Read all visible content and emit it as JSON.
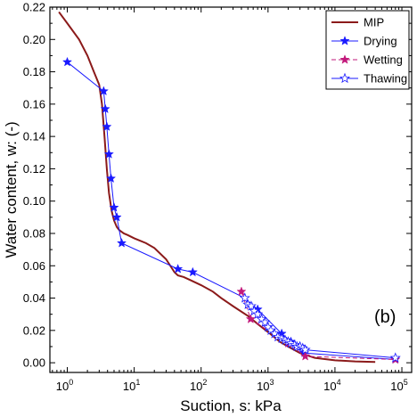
{
  "chart_data": {
    "type": "line",
    "panel_label": "(b)",
    "xlabel": "Suction, s: kPa",
    "ylabel": "Water content, w: (-)",
    "xscale": "log",
    "xlim": [
      0.55,
      140000
    ],
    "ylim": [
      -0.006,
      0.22
    ],
    "grid": false,
    "legend_position": "top-right",
    "x_ticks": [
      {
        "value": 1,
        "mantissa": "10",
        "exp": "0"
      },
      {
        "value": 10,
        "mantissa": "10",
        "exp": "1"
      },
      {
        "value": 100,
        "mantissa": "10",
        "exp": "2"
      },
      {
        "value": 1000,
        "mantissa": "10",
        "exp": "3"
      },
      {
        "value": 10000,
        "mantissa": "10",
        "exp": "4"
      },
      {
        "value": 100000,
        "mantissa": "10",
        "exp": "5"
      }
    ],
    "y_ticks": [
      {
        "value": 0.0,
        "label": "0.00"
      },
      {
        "value": 0.02,
        "label": "0.02"
      },
      {
        "value": 0.04,
        "label": "0.04"
      },
      {
        "value": 0.06,
        "label": "0.06"
      },
      {
        "value": 0.08,
        "label": "0.08"
      },
      {
        "value": 0.1,
        "label": "0.10"
      },
      {
        "value": 0.12,
        "label": "0.12"
      },
      {
        "value": 0.14,
        "label": "0.14"
      },
      {
        "value": 0.16,
        "label": "0.16"
      },
      {
        "value": 0.18,
        "label": "0.18"
      },
      {
        "value": 0.2,
        "label": "0.20"
      },
      {
        "value": 0.22,
        "label": "0.22"
      }
    ],
    "series": [
      {
        "name": "MIP",
        "color": "#8b1a1a",
        "style": "solid",
        "marker": "none",
        "x": [
          0.75,
          1.0,
          1.5,
          2.0,
          2.5,
          3.0,
          3.3,
          3.6,
          3.9,
          4.2,
          4.6,
          5.0,
          5.5,
          6.0,
          7.0,
          8.0,
          10,
          15,
          20,
          30,
          40,
          45,
          55,
          70,
          100,
          150,
          200,
          300,
          500,
          700,
          1000,
          1500,
          2000,
          3000,
          5000,
          10000,
          20000,
          40000
        ],
        "y": [
          0.217,
          0.21,
          0.2,
          0.19,
          0.18,
          0.172,
          0.16,
          0.14,
          0.12,
          0.105,
          0.094,
          0.088,
          0.084,
          0.082,
          0.08,
          0.079,
          0.077,
          0.074,
          0.071,
          0.064,
          0.056,
          0.054,
          0.053,
          0.051,
          0.048,
          0.044,
          0.04,
          0.035,
          0.029,
          0.024,
          0.019,
          0.013,
          0.01,
          0.006,
          0.003,
          0.0015,
          0.0008,
          0.0005
        ]
      },
      {
        "name": "Drying",
        "color": "#1a1aff",
        "style": "solid",
        "marker": "star-filled",
        "x": [
          1.0,
          3.5,
          3.7,
          3.9,
          4.2,
          4.5,
          5.0,
          5.5,
          6.5,
          45,
          75,
          450,
          700,
          1600,
          2200,
          3500,
          80000
        ],
        "y": [
          0.186,
          0.168,
          0.157,
          0.146,
          0.129,
          0.114,
          0.096,
          0.09,
          0.074,
          0.058,
          0.056,
          0.04,
          0.033,
          0.018,
          0.013,
          0.006,
          0.002
        ]
      },
      {
        "name": "Wetting",
        "color": "#c2187b",
        "style": "dashed",
        "marker": "star-filled",
        "x": [
          400,
          550,
          2000,
          3600,
          80000
        ],
        "y": [
          0.044,
          0.027,
          0.012,
          0.004,
          0.002
        ]
      },
      {
        "name": "Thawing",
        "color": "#1a1aff",
        "style": "solid",
        "marker": "star-open",
        "x": [
          450,
          500,
          560,
          620,
          700,
          800,
          900,
          1000,
          1100,
          1250,
          1400,
          1600,
          1800,
          2000,
          2200,
          2500,
          2700,
          3000,
          3300,
          3600,
          80000
        ],
        "y": [
          0.04,
          0.036,
          0.035,
          0.032,
          0.03,
          0.027,
          0.025,
          0.022,
          0.02,
          0.018,
          0.016,
          0.015,
          0.014,
          0.013,
          0.012,
          0.011,
          0.01,
          0.01,
          0.009,
          0.008,
          0.003
        ]
      }
    ]
  }
}
